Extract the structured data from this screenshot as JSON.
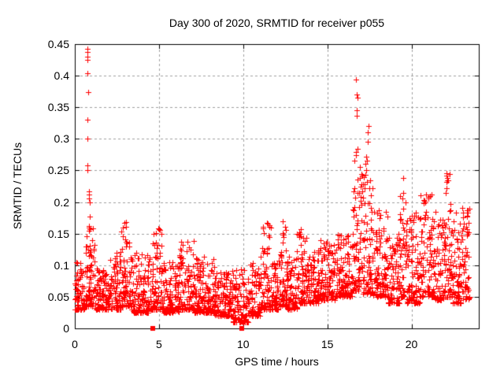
{
  "chart_data": {
    "type": "scatter",
    "title": "Day 300 of 2020, SRMTID for receiver p055",
    "xlabel": "GPS time / hours",
    "ylabel": "SRMTID / TECUs",
    "xlim": [
      0,
      24
    ],
    "ylim": [
      0,
      0.45
    ],
    "xticks": [
      {
        "value": 0,
        "label": "0"
      },
      {
        "value": 5,
        "label": "5"
      },
      {
        "value": 10,
        "label": "10"
      },
      {
        "value": 15,
        "label": "15"
      },
      {
        "value": 20,
        "label": "20"
      }
    ],
    "yticks": [
      {
        "value": 0,
        "label": "0"
      },
      {
        "value": 0.05,
        "label": "0.05"
      },
      {
        "value": 0.1,
        "label": "0.1"
      },
      {
        "value": 0.15,
        "label": "0.15"
      },
      {
        "value": 0.2,
        "label": "0.2"
      },
      {
        "value": 0.25,
        "label": "0.25"
      },
      {
        "value": 0.3,
        "label": "0.3"
      },
      {
        "value": 0.35,
        "label": "0.35"
      },
      {
        "value": 0.4,
        "label": "0.4"
      },
      {
        "value": 0.45,
        "label": "0.45"
      }
    ],
    "grid": true,
    "legend": "none",
    "marker": "plus",
    "marker_color": "#ff0000",
    "grid_color": "#a0a0a0",
    "border_color": "#000000",
    "background_color": "#ffffff",
    "seed": 42,
    "band_bins": [
      [
        0.0,
        0.6,
        70,
        0.03,
        0.105,
        2.0
      ],
      [
        0.6,
        1.2,
        70,
        0.035,
        0.16,
        2.0
      ],
      [
        1.2,
        2.1,
        105,
        0.03,
        0.095,
        2.0
      ],
      [
        2.1,
        2.7,
        70,
        0.03,
        0.125,
        2.0
      ],
      [
        2.7,
        3.3,
        70,
        0.035,
        0.168,
        2.2
      ],
      [
        3.3,
        4.5,
        140,
        0.025,
        0.12,
        2.3
      ],
      [
        4.5,
        5.2,
        80,
        0.03,
        0.158,
        2.3
      ],
      [
        5.2,
        6.2,
        115,
        0.025,
        0.105,
        2.0
      ],
      [
        6.2,
        7.1,
        105,
        0.03,
        0.14,
        2.2
      ],
      [
        7.1,
        8.3,
        140,
        0.025,
        0.115,
        2.2
      ],
      [
        8.3,
        9.3,
        115,
        0.02,
        0.09,
        2.0
      ],
      [
        9.3,
        10.3,
        115,
        0.01,
        0.095,
        2.2
      ],
      [
        10.3,
        11.0,
        80,
        0.02,
        0.105,
        2.0
      ],
      [
        11.0,
        11.7,
        80,
        0.03,
        0.168,
        2.3
      ],
      [
        11.7,
        12.1,
        46,
        0.03,
        0.11,
        2.0
      ],
      [
        12.1,
        12.6,
        58,
        0.035,
        0.17,
        2.3
      ],
      [
        12.6,
        13.2,
        70,
        0.03,
        0.12,
        2.0
      ],
      [
        13.2,
        13.8,
        70,
        0.04,
        0.158,
        2.2
      ],
      [
        13.8,
        14.5,
        80,
        0.04,
        0.125,
        2.0
      ],
      [
        14.5,
        15.5,
        115,
        0.045,
        0.14,
        2.0
      ],
      [
        15.5,
        16.5,
        115,
        0.05,
        0.15,
        2.0
      ],
      [
        16.5,
        17.0,
        60,
        0.06,
        0.27,
        1.7
      ],
      [
        17.0,
        17.7,
        85,
        0.055,
        0.25,
        1.9
      ],
      [
        17.7,
        18.6,
        105,
        0.05,
        0.19,
        2.0
      ],
      [
        18.6,
        19.3,
        80,
        0.04,
        0.15,
        2.0
      ],
      [
        19.3,
        19.7,
        48,
        0.05,
        0.215,
        1.9
      ],
      [
        19.7,
        20.5,
        95,
        0.04,
        0.185,
        2.0
      ],
      [
        20.5,
        21.3,
        95,
        0.05,
        0.215,
        2.0
      ],
      [
        21.3,
        22.0,
        80,
        0.045,
        0.19,
        2.0
      ],
      [
        22.0,
        22.4,
        48,
        0.05,
        0.248,
        1.8
      ],
      [
        22.4,
        23.0,
        70,
        0.04,
        0.19,
        2.0
      ],
      [
        23.0,
        23.45,
        55,
        0.045,
        0.196,
        1.7
      ]
    ],
    "spike_points": [
      [
        0.75,
        0.443
      ],
      [
        0.76,
        0.437
      ],
      [
        0.77,
        0.43
      ],
      [
        0.75,
        0.425
      ],
      [
        0.74,
        0.404
      ],
      [
        0.78,
        0.374
      ],
      [
        0.76,
        0.33
      ],
      [
        0.74,
        0.3
      ],
      [
        0.77,
        0.258
      ],
      [
        0.75,
        0.25
      ],
      [
        0.85,
        0.217
      ],
      [
        0.86,
        0.212
      ],
      [
        0.84,
        0.206
      ],
      [
        0.88,
        0.199
      ],
      [
        0.9,
        0.177
      ],
      [
        0.82,
        0.162
      ],
      [
        0.86,
        0.16
      ],
      [
        0.9,
        0.157
      ],
      [
        0.84,
        0.155
      ],
      [
        0.87,
        0.121
      ],
      [
        0.85,
        0.115
      ],
      [
        16.72,
        0.394
      ],
      [
        16.75,
        0.37
      ],
      [
        16.78,
        0.365
      ],
      [
        16.73,
        0.345
      ],
      [
        16.76,
        0.336
      ],
      [
        17.45,
        0.32
      ],
      [
        17.42,
        0.311
      ],
      [
        17.4,
        0.296
      ],
      [
        16.78,
        0.284
      ],
      [
        16.72,
        0.279
      ],
      [
        16.68,
        0.274
      ],
      [
        17.3,
        0.272
      ],
      [
        17.35,
        0.265
      ],
      [
        17.28,
        0.26
      ],
      [
        17.32,
        0.25
      ],
      [
        17.25,
        0.243
      ],
      [
        16.8,
        0.235
      ],
      [
        17.1,
        0.228
      ],
      [
        17.2,
        0.222
      ],
      [
        16.9,
        0.215
      ],
      [
        17.0,
        0.208
      ],
      [
        19.5,
        0.238
      ],
      [
        19.52,
        0.214
      ],
      [
        19.48,
        0.206
      ],
      [
        22.08,
        0.245
      ],
      [
        22.12,
        0.238
      ],
      [
        22.1,
        0.232
      ],
      [
        22.06,
        0.222
      ],
      [
        3.02,
        0.168
      ],
      [
        11.45,
        0.166
      ],
      [
        12.35,
        0.17
      ],
      [
        13.45,
        0.157
      ],
      [
        5.0,
        0.157
      ]
    ],
    "square_points": [
      [
        4.62,
        0
      ],
      [
        9.93,
        0
      ]
    ]
  }
}
